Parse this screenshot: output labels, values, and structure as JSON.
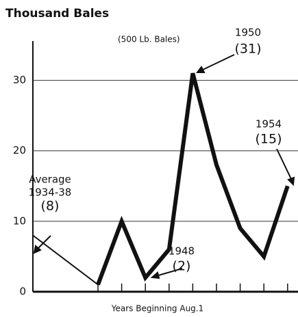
{
  "chart_data": {
    "type": "line",
    "title": "Thousand Bales",
    "subtitle": "(500 Lb. Bales)",
    "x_label": "Years Beginning Aug.1",
    "categories": [
      null,
      null,
      null,
      null,
      null,
      null,
      null,
      null,
      null,
      null
    ],
    "series": [
      {
        "color": "#111111",
        "values": [
          8,
          1,
          null,
          null,
          null,
          null,
          null,
          null,
          null,
          null
        ],
        "value_labels": [
          "(8)",
          null,
          null,
          null,
          null,
          null,
          null,
          null,
          null,
          null
        ]
      },
      {
        "color": "#111111",
        "values": [
          null,
          1,
          10,
          2,
          6,
          31,
          18,
          9,
          5,
          15
        ],
        "value_labels": [
          null,
          null,
          null,
          "(2)",
          null,
          "(31)",
          null,
          null,
          null,
          "(15)"
        ]
      }
    ],
    "annotations": [
      "Average",
      "1934-38",
      "1948",
      "1950",
      "1954"
    ],
    "ylim": [
      0,
      35
    ],
    "yticks": [
      0,
      10,
      20,
      30
    ],
    "grid": true
  }
}
